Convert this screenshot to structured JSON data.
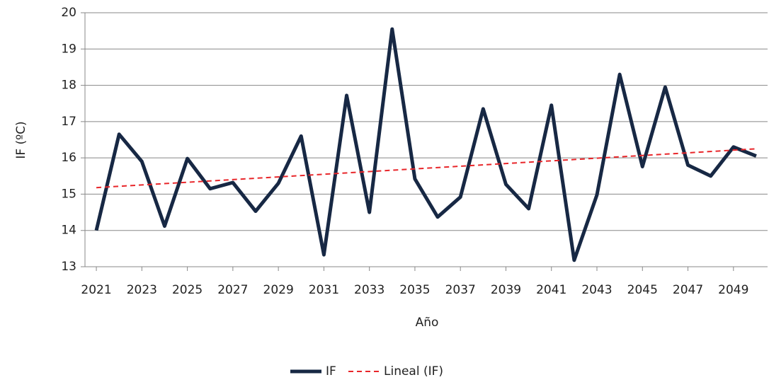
{
  "chart_data": {
    "type": "line",
    "x_label": "Año",
    "y_label": "IF (ºC)",
    "x": [
      2021,
      2022,
      2023,
      2024,
      2025,
      2026,
      2027,
      2028,
      2029,
      2030,
      2031,
      2032,
      2033,
      2034,
      2035,
      2036,
      2037,
      2038,
      2039,
      2040,
      2041,
      2042,
      2043,
      2044,
      2045,
      2046,
      2047,
      2048,
      2049,
      2050
    ],
    "series": [
      {
        "name": "IF",
        "color": "#172844",
        "values": [
          14.0,
          16.65,
          15.9,
          14.12,
          15.98,
          15.15,
          15.32,
          14.53,
          15.3,
          16.6,
          13.33,
          17.72,
          14.5,
          19.55,
          15.42,
          14.37,
          14.92,
          17.35,
          15.27,
          14.6,
          17.45,
          13.18,
          14.98,
          18.3,
          15.76,
          17.95,
          15.8,
          15.5,
          16.3,
          16.05
        ]
      },
      {
        "name": "Lineal (IF)",
        "color": "#e8262a",
        "dashed": true,
        "x": [
          2021,
          2050
        ],
        "values": [
          15.18,
          16.25
        ]
      }
    ],
    "xlim": [
      2020.5,
      2050.5
    ],
    "xticks": [
      2021,
      2023,
      2025,
      2027,
      2029,
      2031,
      2033,
      2035,
      2037,
      2039,
      2041,
      2043,
      2045,
      2047,
      2049
    ],
    "ylim": [
      13,
      20
    ],
    "yticks": [
      13,
      14,
      15,
      16,
      17,
      18,
      19,
      20
    ],
    "grid": true,
    "legend": "bottom"
  }
}
